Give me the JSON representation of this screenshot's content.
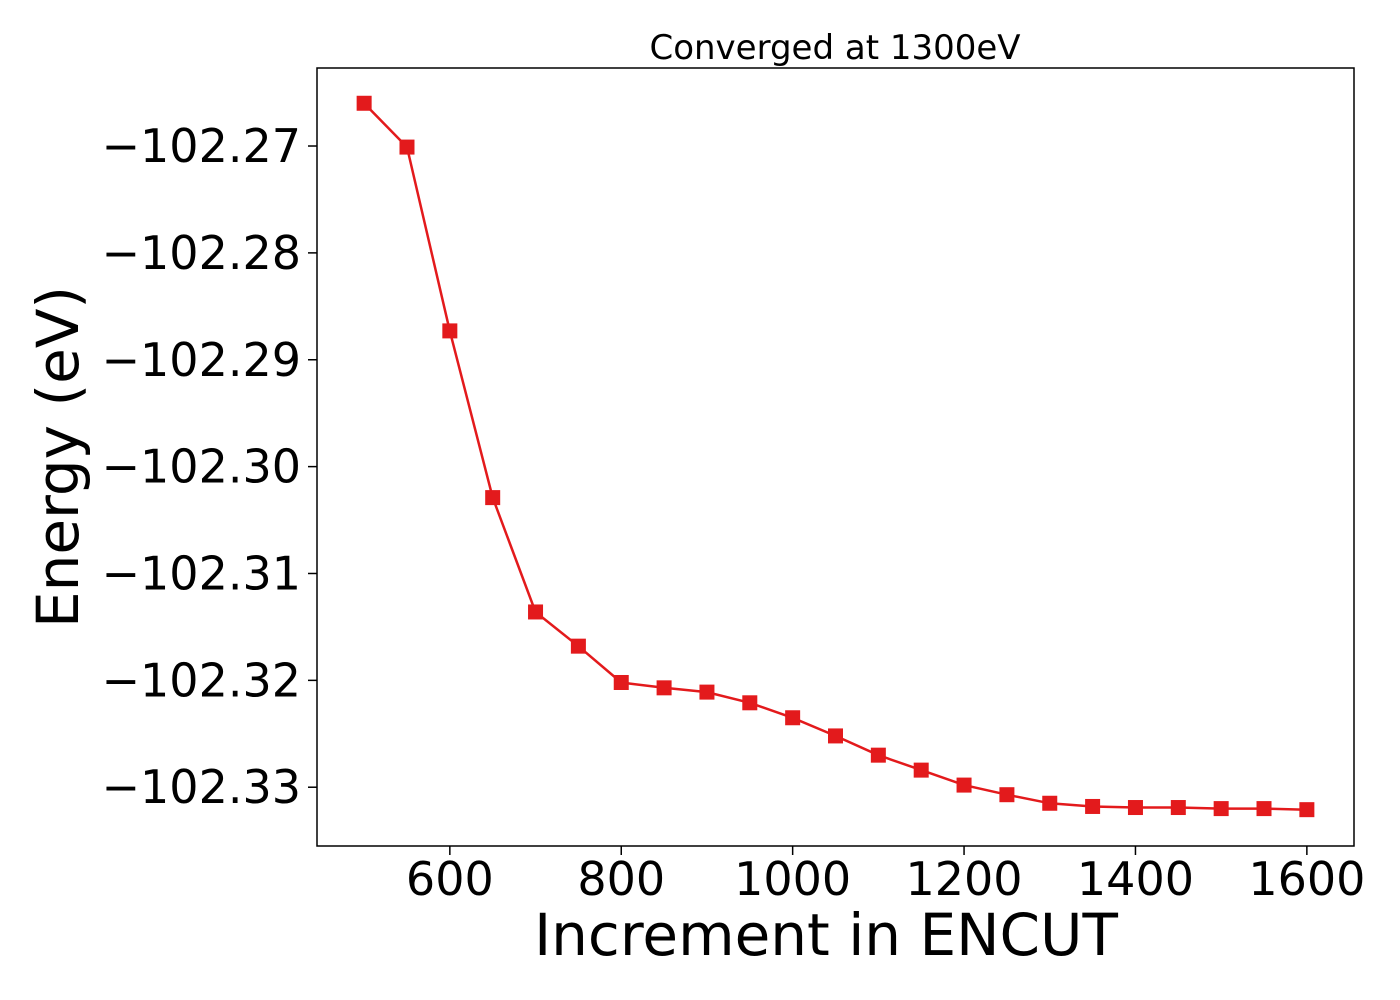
{
  "chart_data": {
    "type": "line",
    "title": "Converged at 1300eV",
    "xlabel": "Increment in ENCUT",
    "ylabel": "Energy (eV)",
    "x": [
      500,
      550,
      600,
      650,
      700,
      750,
      800,
      850,
      900,
      950,
      1000,
      1050,
      1100,
      1150,
      1200,
      1250,
      1300,
      1350,
      1400,
      1450,
      1500,
      1550,
      1600
    ],
    "series": [
      {
        "values": [
          -102.266,
          -102.2701,
          -102.2873,
          -102.3029,
          -102.3136,
          -102.3168,
          -102.3202,
          -102.3207,
          -102.3211,
          -102.3221,
          -102.3235,
          -102.3252,
          -102.327,
          -102.3284,
          -102.3298,
          -102.3307,
          -102.3315,
          -102.3318,
          -102.3319,
          -102.3319,
          -102.332,
          -102.332,
          -102.3321
        ],
        "color": "#e31a1c",
        "marker": "square"
      }
    ],
    "xlim": [
      445,
      1655
    ],
    "ylim": [
      -102.3355,
      -102.2627
    ],
    "xticks": [
      600,
      800,
      1000,
      1200,
      1400,
      1600
    ],
    "xtick_labels": [
      "600",
      "800",
      "1000",
      "1200",
      "1400",
      "1600"
    ],
    "yticks": [
      -102.27,
      -102.28,
      -102.29,
      -102.3,
      -102.31,
      -102.32,
      -102.33
    ],
    "ytick_labels": [
      "−102.27",
      "−102.28",
      "−102.29",
      "−102.30",
      "−102.31",
      "−102.32",
      "−102.33"
    ],
    "grid": false,
    "legend": "none"
  }
}
